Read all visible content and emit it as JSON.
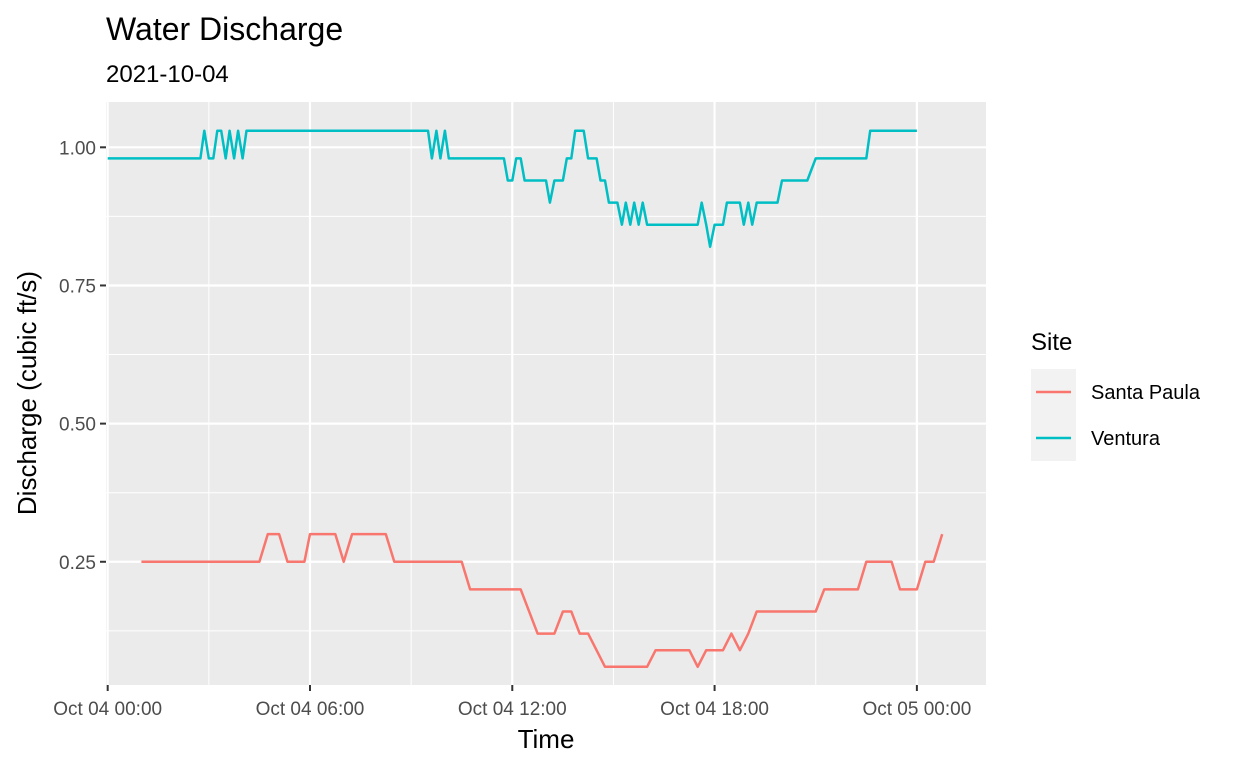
{
  "chart_data": {
    "type": "line",
    "title": "Water Discharge",
    "subtitle": "2021-10-04",
    "xlabel": "Time",
    "ylabel": "Discharge (cubic ft/s)",
    "x_axis": {
      "type": "datetime",
      "range": [
        "2021-10-03T23:57",
        "2021-10-05T02:03"
      ],
      "ticks": [
        {
          "value": "2021-10-04T00:00",
          "label": "Oct 04 00:00"
        },
        {
          "value": "2021-10-04T06:00",
          "label": "Oct 04 06:00"
        },
        {
          "value": "2021-10-04T12:00",
          "label": "Oct 04 12:00"
        },
        {
          "value": "2021-10-04T18:00",
          "label": "Oct 04 18:00"
        },
        {
          "value": "2021-10-05T00:00",
          "label": "Oct 05 00:00"
        }
      ]
    },
    "y_axis": {
      "range": [
        0.027,
        1.082
      ],
      "ticks": [
        {
          "value": 0.25,
          "label": "0.25"
        },
        {
          "value": 0.5,
          "label": "0.50"
        },
        {
          "value": 0.75,
          "label": "0.75"
        },
        {
          "value": 1.0,
          "label": "1.00"
        }
      ]
    },
    "grid": true,
    "legend": {
      "title": "Site",
      "position": "right"
    },
    "series": [
      {
        "name": "Santa Paula",
        "color": "#f8766d",
        "points": [
          [
            "2021-10-04T01:00",
            0.25
          ],
          [
            "2021-10-04T04:30",
            0.25
          ],
          [
            "2021-10-04T04:45",
            0.3
          ],
          [
            "2021-10-04T05:05",
            0.3
          ],
          [
            "2021-10-04T05:20",
            0.25
          ],
          [
            "2021-10-04T05:50",
            0.25
          ],
          [
            "2021-10-04T06:00",
            0.3
          ],
          [
            "2021-10-04T06:45",
            0.3
          ],
          [
            "2021-10-04T07:00",
            0.25
          ],
          [
            "2021-10-04T07:15",
            0.3
          ],
          [
            "2021-10-04T08:15",
            0.3
          ],
          [
            "2021-10-04T08:30",
            0.25
          ],
          [
            "2021-10-04T10:30",
            0.25
          ],
          [
            "2021-10-04T10:45",
            0.2
          ],
          [
            "2021-10-04T12:15",
            0.2
          ],
          [
            "2021-10-04T12:45",
            0.12
          ],
          [
            "2021-10-04T13:15",
            0.12
          ],
          [
            "2021-10-04T13:30",
            0.16
          ],
          [
            "2021-10-04T13:45",
            0.16
          ],
          [
            "2021-10-04T14:00",
            0.12
          ],
          [
            "2021-10-04T14:15",
            0.12
          ],
          [
            "2021-10-04T14:45",
            0.06
          ],
          [
            "2021-10-04T16:00",
            0.06
          ],
          [
            "2021-10-04T16:15",
            0.09
          ],
          [
            "2021-10-04T17:15",
            0.09
          ],
          [
            "2021-10-04T17:30",
            0.06
          ],
          [
            "2021-10-04T17:45",
            0.09
          ],
          [
            "2021-10-04T18:15",
            0.09
          ],
          [
            "2021-10-04T18:30",
            0.12
          ],
          [
            "2021-10-04T18:45",
            0.09
          ],
          [
            "2021-10-04T19:00",
            0.12
          ],
          [
            "2021-10-04T19:15",
            0.16
          ],
          [
            "2021-10-04T21:00",
            0.16
          ],
          [
            "2021-10-04T21:15",
            0.2
          ],
          [
            "2021-10-04T22:15",
            0.2
          ],
          [
            "2021-10-04T22:30",
            0.25
          ],
          [
            "2021-10-04T23:15",
            0.25
          ],
          [
            "2021-10-04T23:30",
            0.2
          ],
          [
            "2021-10-05T00:00",
            0.2
          ],
          [
            "2021-10-05T00:15",
            0.25
          ],
          [
            "2021-10-05T00:30",
            0.25
          ],
          [
            "2021-10-05T00:45",
            0.3
          ]
        ]
      },
      {
        "name": "Ventura",
        "color": "#00bfc4",
        "points": [
          [
            "2021-10-04T00:00",
            0.98
          ],
          [
            "2021-10-04T02:45",
            0.98
          ],
          [
            "2021-10-04T02:52",
            1.03
          ],
          [
            "2021-10-04T03:00",
            0.98
          ],
          [
            "2021-10-04T03:08",
            0.98
          ],
          [
            "2021-10-04T03:15",
            1.03
          ],
          [
            "2021-10-04T03:22",
            1.03
          ],
          [
            "2021-10-04T03:30",
            0.98
          ],
          [
            "2021-10-04T03:37",
            1.03
          ],
          [
            "2021-10-04T03:45",
            0.98
          ],
          [
            "2021-10-04T03:52",
            1.03
          ],
          [
            "2021-10-04T04:00",
            0.98
          ],
          [
            "2021-10-04T04:07",
            1.03
          ],
          [
            "2021-10-04T09:30",
            1.03
          ],
          [
            "2021-10-04T09:37",
            0.98
          ],
          [
            "2021-10-04T09:45",
            1.03
          ],
          [
            "2021-10-04T09:52",
            0.98
          ],
          [
            "2021-10-04T10:00",
            1.03
          ],
          [
            "2021-10-04T10:07",
            0.98
          ],
          [
            "2021-10-04T11:45",
            0.98
          ],
          [
            "2021-10-04T11:52",
            0.94
          ],
          [
            "2021-10-04T12:00",
            0.94
          ],
          [
            "2021-10-04T12:07",
            0.98
          ],
          [
            "2021-10-04T12:15",
            0.98
          ],
          [
            "2021-10-04T12:22",
            0.94
          ],
          [
            "2021-10-04T13:00",
            0.94
          ],
          [
            "2021-10-04T13:07",
            0.9
          ],
          [
            "2021-10-04T13:15",
            0.94
          ],
          [
            "2021-10-04T13:30",
            0.94
          ],
          [
            "2021-10-04T13:37",
            0.98
          ],
          [
            "2021-10-04T13:45",
            0.98
          ],
          [
            "2021-10-04T13:52",
            1.03
          ],
          [
            "2021-10-04T14:07",
            1.03
          ],
          [
            "2021-10-04T14:15",
            0.98
          ],
          [
            "2021-10-04T14:30",
            0.98
          ],
          [
            "2021-10-04T14:37",
            0.94
          ],
          [
            "2021-10-04T14:45",
            0.94
          ],
          [
            "2021-10-04T14:52",
            0.9
          ],
          [
            "2021-10-04T15:07",
            0.9
          ],
          [
            "2021-10-04T15:15",
            0.86
          ],
          [
            "2021-10-04T15:22",
            0.9
          ],
          [
            "2021-10-04T15:30",
            0.86
          ],
          [
            "2021-10-04T15:37",
            0.9
          ],
          [
            "2021-10-04T15:45",
            0.86
          ],
          [
            "2021-10-04T15:52",
            0.9
          ],
          [
            "2021-10-04T16:00",
            0.86
          ],
          [
            "2021-10-04T17:30",
            0.86
          ],
          [
            "2021-10-04T17:37",
            0.9
          ],
          [
            "2021-10-04T17:45",
            0.86
          ],
          [
            "2021-10-04T17:52",
            0.82
          ],
          [
            "2021-10-04T18:00",
            0.86
          ],
          [
            "2021-10-04T18:15",
            0.86
          ],
          [
            "2021-10-04T18:22",
            0.9
          ],
          [
            "2021-10-04T18:45",
            0.9
          ],
          [
            "2021-10-04T18:52",
            0.86
          ],
          [
            "2021-10-04T19:00",
            0.9
          ],
          [
            "2021-10-04T19:07",
            0.86
          ],
          [
            "2021-10-04T19:15",
            0.9
          ],
          [
            "2021-10-04T19:52",
            0.9
          ],
          [
            "2021-10-04T20:00",
            0.94
          ],
          [
            "2021-10-04T20:45",
            0.94
          ],
          [
            "2021-10-04T21:00",
            0.98
          ],
          [
            "2021-10-04T22:30",
            0.98
          ],
          [
            "2021-10-04T22:37",
            1.03
          ],
          [
            "2021-10-05T00:00",
            1.03
          ]
        ]
      }
    ]
  }
}
